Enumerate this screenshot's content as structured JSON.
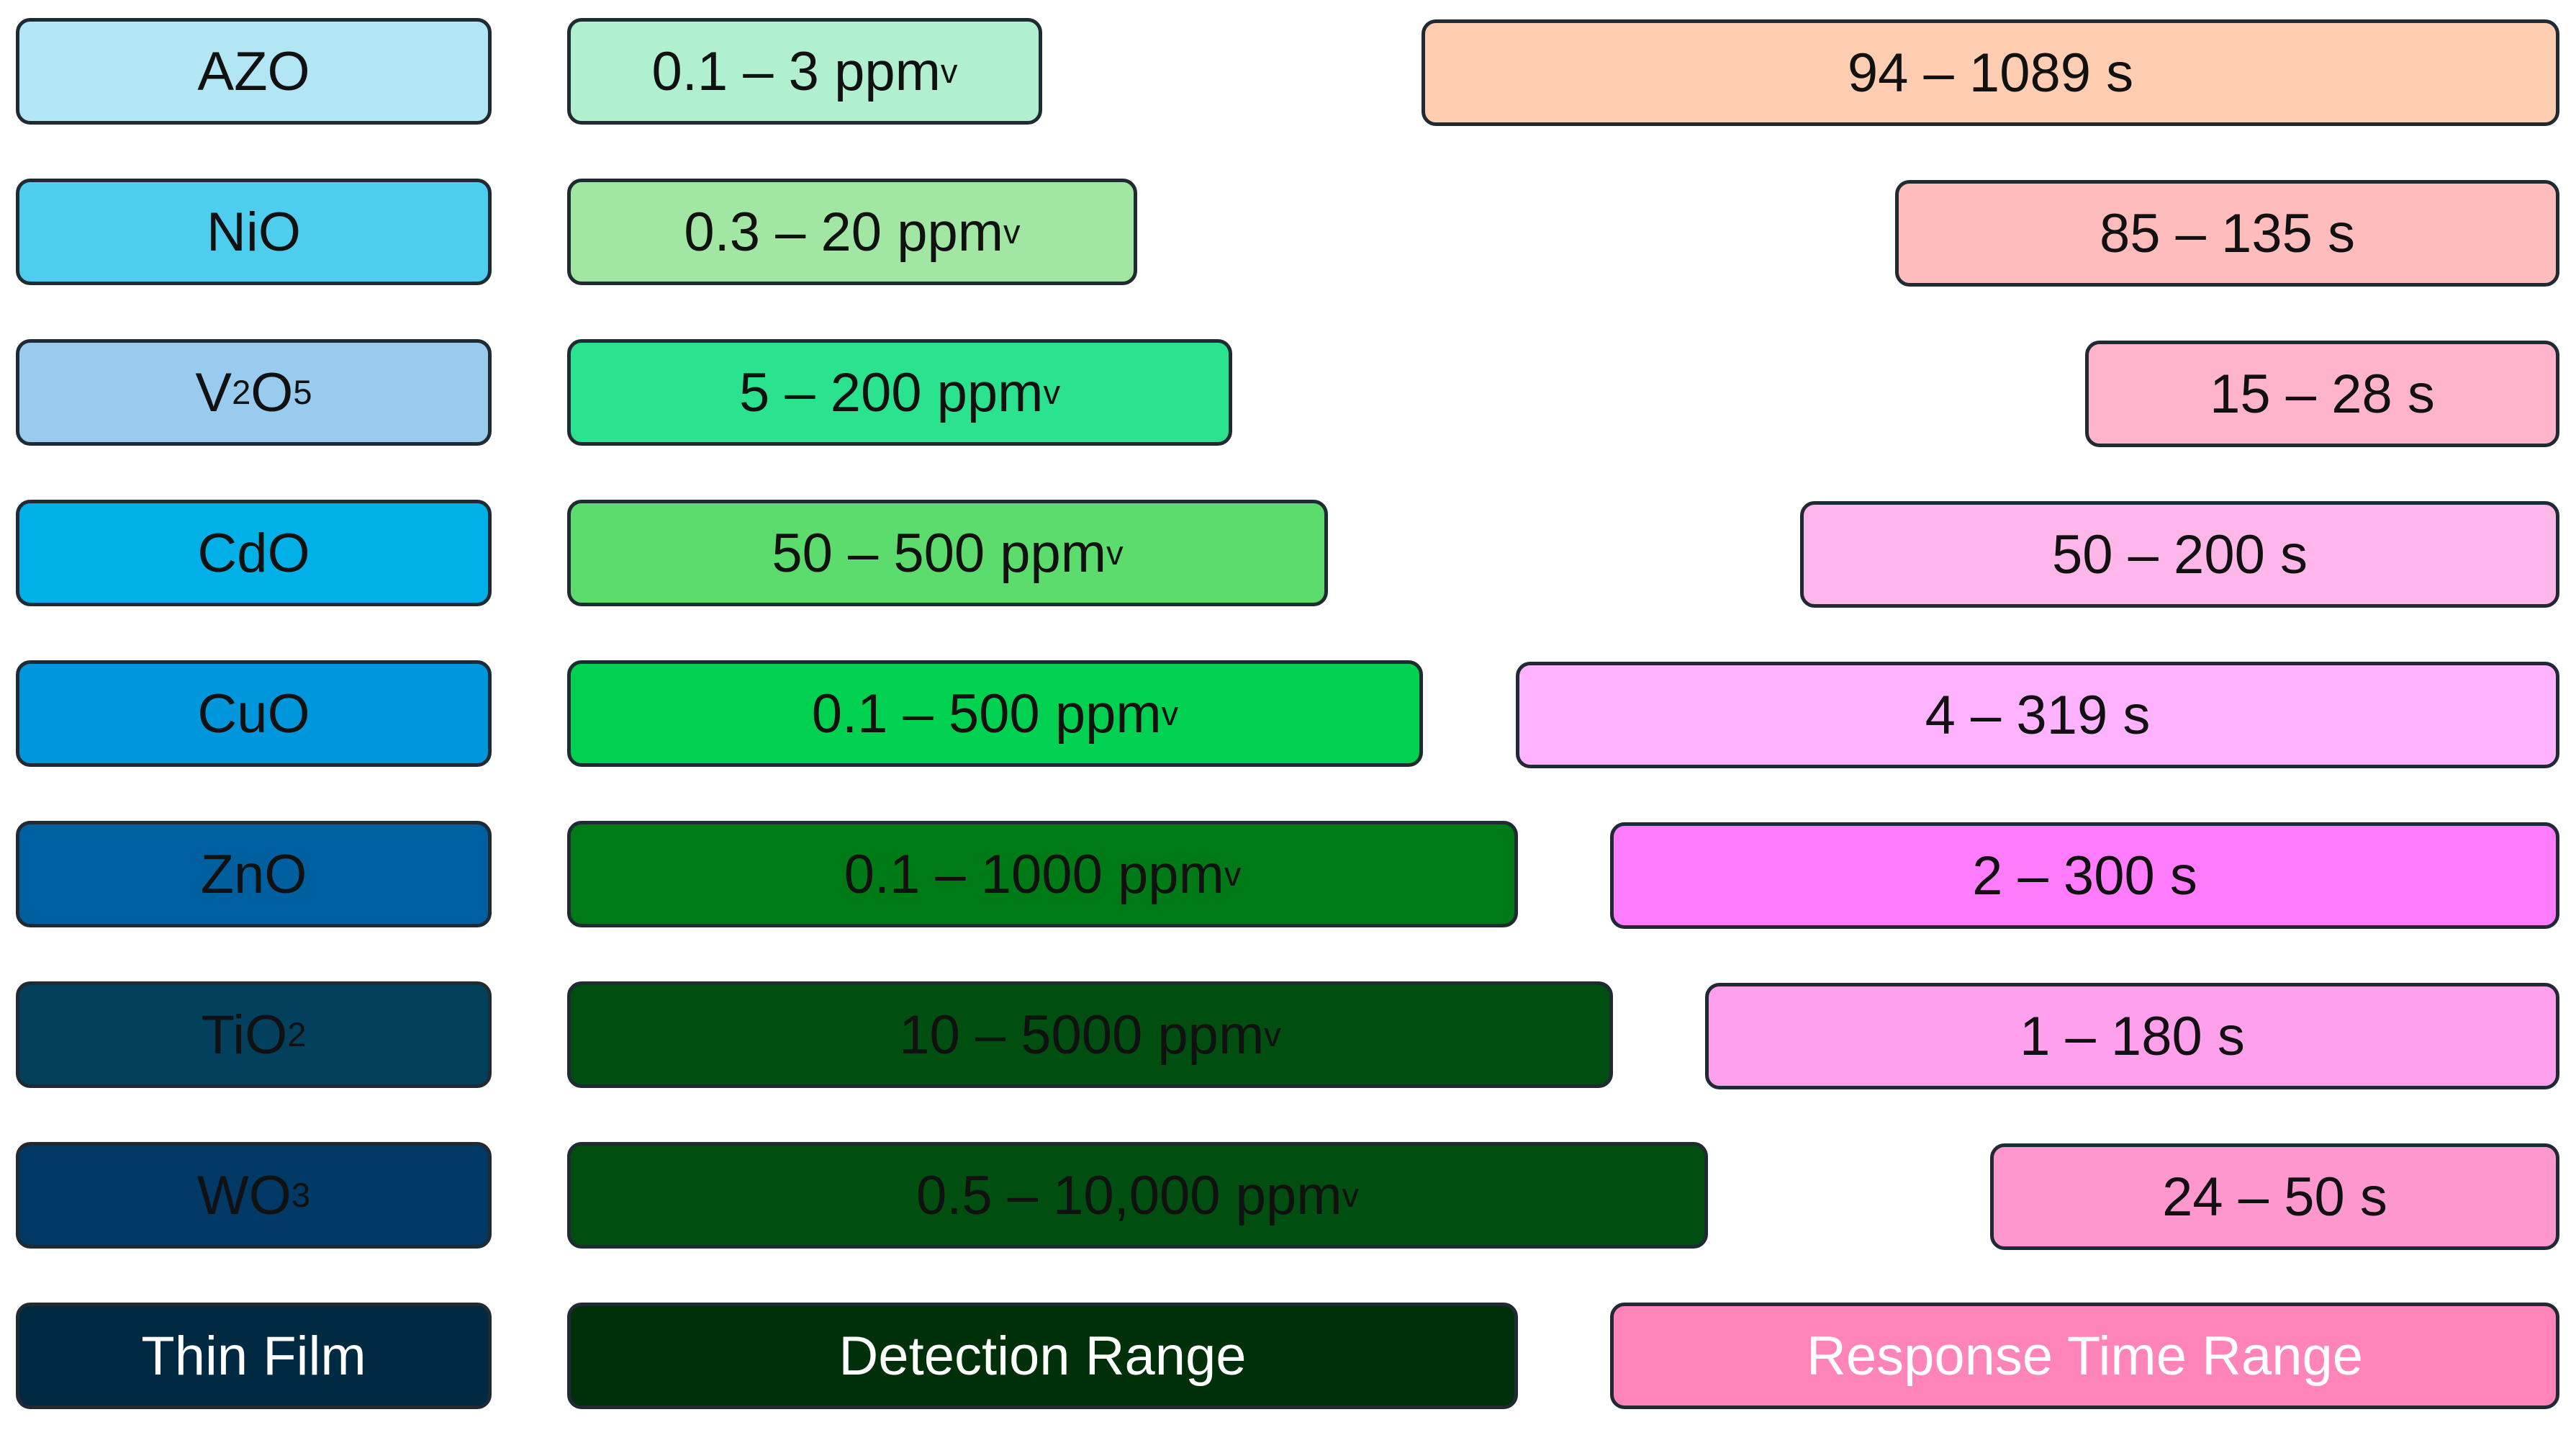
{
  "rows": [
    {
      "film": {
        "text": "AZO",
        "sub": "",
        "after": "",
        "color": "#b3e6f5"
      },
      "range": {
        "text": "0.1 – 3 ppm",
        "sub": "v",
        "color": "#b0f0cf"
      },
      "response": {
        "text": "94 – 1089 s",
        "color": "#ffcdb2"
      }
    },
    {
      "film": {
        "text": "NiO",
        "sub": "",
        "after": "",
        "color": "#4ecdee"
      },
      "range": {
        "text": "0.3 – 20 ppm",
        "sub": "v",
        "color": "#a2e6a4"
      },
      "response": {
        "text": "85 – 135 s",
        "color": "#ffbcbc"
      }
    },
    {
      "film": {
        "text": "V",
        "sub": "2",
        "after": "O",
        "sub2": "5",
        "color": "#98cbee"
      },
      "range": {
        "text": "5 – 200 ppm",
        "sub": "v",
        "color": "#2be28e"
      },
      "response": {
        "text": "15 – 28 s",
        "color": "#ffb4cc"
      }
    },
    {
      "film": {
        "text": "CdO",
        "sub": "",
        "after": "",
        "color": "#00b0e6"
      },
      "range": {
        "text": "50 – 500 ppm",
        "sub": "v",
        "color": "#5cdc6c"
      },
      "response": {
        "text": "50 – 200 s",
        "color": "#ffb6e8"
      }
    },
    {
      "film": {
        "text": "CuO",
        "sub": "",
        "after": "",
        "color": "#0096dc"
      },
      "range": {
        "text": "0.1 – 500 ppm",
        "sub": "v",
        "color": "#00d150"
      },
      "response": {
        "text": "4 – 319 s",
        "color": "#ffb2ff"
      }
    },
    {
      "film": {
        "text": "ZnO",
        "sub": "",
        "after": "",
        "color": "#005f9e"
      },
      "range": {
        "text": "0.1 – 1000 ppm",
        "sub": "v",
        "color": "#007a16"
      },
      "response": {
        "text": "2 – 300 s",
        "color": "#ff7cff"
      }
    },
    {
      "film": {
        "text": "TiO",
        "sub": "2",
        "after": "",
        "color": "#02405e"
      },
      "range": {
        "text": "10 – 5000 ppm",
        "sub": "v",
        "color": "#004e10"
      },
      "response": {
        "text": "1 – 180 s",
        "color": "#ffa0ec"
      }
    },
    {
      "film": {
        "text": "WO",
        "sub": "3",
        "after": "",
        "color": "#003866"
      },
      "range": {
        "text": "0.5 – 10,000 ppm",
        "sub": "v",
        "color": "#004e10"
      },
      "response": {
        "text": "24 – 50 s",
        "color": "#ff97cf"
      }
    }
  ],
  "legend": {
    "film": {
      "text": "Thin Film",
      "color": "#002a42"
    },
    "range": {
      "text": "Detection Range",
      "color": "#00300a"
    },
    "response": {
      "text": "Response Time Range",
      "color": "#ff84b7"
    }
  }
}
